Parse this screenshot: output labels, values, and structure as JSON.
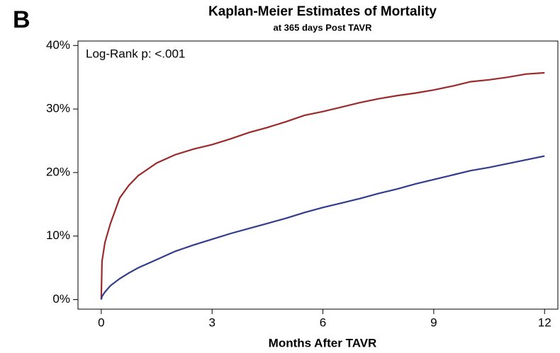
{
  "panel_label": "B",
  "chart_data": {
    "type": "line",
    "title": "Kaplan-Meier Estimates of Mortality",
    "subtitle": "at 365 days Post TAVR",
    "x_label": "Months After TAVR",
    "annotation": "Log-Rank p:  <.001",
    "x": [
      0,
      0.02,
      0.1,
      0.25,
      0.5,
      0.75,
      1,
      1.5,
      2,
      2.5,
      3,
      3.5,
      4,
      4.5,
      5,
      5.5,
      6,
      6.5,
      7,
      7.5,
      8,
      8.5,
      9,
      9.5,
      10,
      10.5,
      11,
      11.5,
      12
    ],
    "series": [
      {
        "color": "#9b2a2a",
        "values": [
          0,
          6,
          9,
          12,
          16,
          18,
          19.5,
          21.5,
          22.8,
          23.7,
          24.4,
          25.3,
          26.3,
          27.1,
          28,
          29,
          29.6,
          30.3,
          31,
          31.6,
          32.1,
          32.5,
          33,
          33.6,
          34.3,
          34.6,
          35,
          35.5,
          35.7
        ]
      },
      {
        "color": "#323c8c",
        "values": [
          0,
          0.5,
          1.2,
          2.2,
          3.3,
          4.2,
          5,
          6.3,
          7.6,
          8.6,
          9.5,
          10.4,
          11.2,
          12,
          12.8,
          13.7,
          14.5,
          15.2,
          15.9,
          16.7,
          17.4,
          18.2,
          18.9,
          19.6,
          20.3,
          20.8,
          21.4,
          22,
          22.6
        ]
      }
    ],
    "xlim": [
      -0.63,
      12.36
    ],
    "ylim": [
      -1.5,
      40.7
    ],
    "xticks": [
      0,
      3,
      6,
      9,
      12
    ],
    "yticks": [
      {
        "value": 0,
        "label": "0%"
      },
      {
        "value": 10,
        "label": "10%"
      },
      {
        "value": 20,
        "label": "20%"
      },
      {
        "value": 30,
        "label": "30%"
      },
      {
        "value": 40,
        "label": "40%"
      }
    ]
  }
}
